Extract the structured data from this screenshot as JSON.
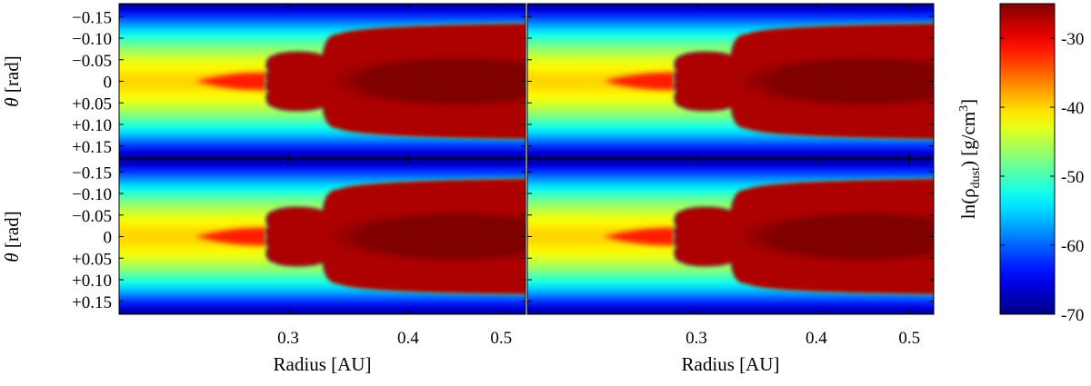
{
  "chart_data": {
    "type": "heatmap",
    "layout": "2x2 panels sharing axes",
    "panel_count": 4,
    "x": {
      "label": "Radius [AU]",
      "scale": "log",
      "range": [
        0.2,
        0.53
      ],
      "ticks": [
        0.3,
        0.4,
        0.5
      ],
      "tick_labels": [
        "0.3",
        "0.4",
        "0.5"
      ]
    },
    "y": {
      "label_symbol": "θ",
      "label_unit": "[rad]",
      "range": [
        -0.18,
        0.18
      ],
      "inverted": true,
      "ticks": [
        -0.15,
        -0.1,
        -0.05,
        0,
        0.05,
        0.1,
        0.15
      ],
      "tick_labels": [
        "−0.15",
        "−0.10",
        "−0.05",
        "0",
        "+0.05",
        "+0.10",
        "+0.15"
      ]
    },
    "colorbar": {
      "label_prefix": "ln(ρ",
      "label_sub": "dust",
      "label_mid": ") [g/cm",
      "label_sup": "3",
      "label_suffix": "]",
      "range": [
        -70,
        -25
      ],
      "ticks": [
        -30,
        -40,
        -50,
        -60,
        -70
      ],
      "tick_labels": [
        "-30",
        "-40",
        "-50",
        "-60",
        "-70"
      ],
      "colormap": "jet"
    },
    "structure": {
      "midplane_value": -40,
      "inner_finger_radius": [
        0.24,
        0.285
      ],
      "dense_region_value": -27,
      "dense_region_start_radius": 0.285,
      "dense_region_core_value": -25,
      "halfwidth_at_start": 0.06,
      "halfwidth_outer": 0.13,
      "transition_radius": 0.33
    }
  }
}
